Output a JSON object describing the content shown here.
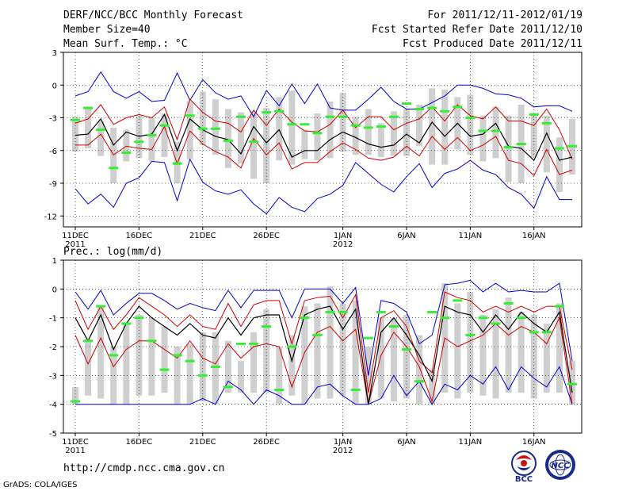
{
  "header": {
    "title": "DERF/NCC/BCC Monthly Forecast",
    "member_size": "Member Size=40",
    "variable1": "Mean Surf. Temp.: °C",
    "period": "For 2011/12/11-2012/01/19",
    "refer_date": "Fcst Started Refer Date 2011/12/10",
    "produced_date": "Fcst Produced Date 2011/12/11"
  },
  "panel2_title": "Prec.: log(mm/d)",
  "footer": {
    "url": "http://cmdp.ncc.cma.gov.cn",
    "grads": "GrADS: COLA/IGES"
  },
  "logos": {
    "bcc": "BCC",
    "ncc": "NCC"
  },
  "colors": {
    "ensemble_mean": "#000000",
    "spread": "#cc0000",
    "extreme": "#0000cc",
    "box": "#cfcfcf",
    "observed": "#33ee33"
  },
  "chart_data": [
    {
      "type": "line",
      "title": "Mean Surf. Temp.: °C",
      "x_tick_labels": [
        "11DEC",
        "16DEC",
        "21DEC",
        "26DEC",
        "1JAN",
        "6JAN",
        "11JAN",
        "16JAN"
      ],
      "x_tick_days": [
        1,
        6,
        11,
        16,
        22,
        27,
        32,
        37
      ],
      "year_labels": [
        {
          "label": "2011",
          "day": 1
        },
        {
          "label": "2012",
          "day": 22
        }
      ],
      "ylim": [
        -13,
        3
      ],
      "yticks": [
        3,
        0,
        -3,
        -6,
        -9,
        -12
      ],
      "days": 40,
      "series": [
        {
          "name": "max",
          "values": [
            -1,
            -0.6,
            1.2,
            -0.6,
            -1.2,
            -0.6,
            -1.5,
            -1.4,
            1.1,
            -1.4,
            0.5,
            -0.7,
            -1.3,
            -1.0,
            -2.9,
            -0.5,
            -1.9,
            0.1,
            -1.7,
            0.1,
            -2.1,
            -2.3,
            -2.3,
            -1.3,
            -0.2,
            -1.5,
            -2.2,
            -2.2,
            -1.6,
            -1,
            0,
            0,
            -0.3,
            -0.8,
            -0.9,
            -1.2,
            -2,
            -1.9,
            -1.9,
            -2.4
          ]
        },
        {
          "name": "upper",
          "values": [
            -3.5,
            -3.1,
            -1.8,
            -3.6,
            -3.0,
            -2.7,
            -3.0,
            -2.0,
            -5.0,
            -1.3,
            -2.5,
            -3.3,
            -3.5,
            -4.3,
            -2.3,
            -3.7,
            -2.2,
            -3.4,
            -4.2,
            -4.3,
            -3.6,
            -2.3,
            -3.9,
            -2.9,
            -2.9,
            -4.1,
            -3.5,
            -3.1,
            -2.0,
            -3.3,
            -1.8,
            -2.8,
            -3.1,
            -2.0,
            -3.3,
            -3.3,
            -3.7,
            -2.2,
            -4.1,
            -6.8
          ]
        },
        {
          "name": "mean",
          "values": [
            -4.6,
            -4.5,
            -3.1,
            -5.5,
            -4.3,
            -4.7,
            -4.5,
            -2.7,
            -6.0,
            -3.1,
            -4.1,
            -4.7,
            -5.0,
            -6.3,
            -3.8,
            -5.3,
            -4.1,
            -6.6,
            -6.0,
            -6.0,
            -5.0,
            -4.3,
            -4.8,
            -5.4,
            -5.7,
            -5.5,
            -4.5,
            -5.3,
            -3.4,
            -4.7,
            -3.5,
            -4.7,
            -4.5,
            -3.5,
            -5.6,
            -5.8,
            -6.9,
            -4.4,
            -6.9,
            -6.6
          ]
        },
        {
          "name": "lower",
          "values": [
            -5.5,
            -5.5,
            -4.5,
            -6.4,
            -5.6,
            -5.8,
            -5.9,
            -3.8,
            -7.2,
            -4.2,
            -5.4,
            -6.1,
            -6.6,
            -7.6,
            -4.9,
            -6.4,
            -5.3,
            -7.7,
            -7.1,
            -7.1,
            -6.1,
            -5.3,
            -5.9,
            -6.7,
            -6.9,
            -6.6,
            -5.6,
            -6.5,
            -4.7,
            -5.9,
            -4.8,
            -6.0,
            -5.5,
            -4.7,
            -6.9,
            -7.2,
            -8.3,
            -5.9,
            -8.2,
            -7.8
          ]
        },
        {
          "name": "min",
          "values": [
            -9.5,
            -10.9,
            -10.0,
            -11.2,
            -9.0,
            -8.5,
            -7.0,
            -7.1,
            -10.6,
            -6.8,
            -8.9,
            -9.7,
            -10.0,
            -9.6,
            -10.9,
            -11.8,
            -10.3,
            -11.2,
            -11.6,
            -10.4,
            -10.0,
            -9.2,
            -7.1,
            -8.1,
            -9.1,
            -9.8,
            -8.4,
            -7.2,
            -9.4,
            -8.1,
            -7.7,
            -6.9,
            -7.8,
            -8.2,
            -9.4,
            -10.0,
            -11.3,
            -8.4,
            -10.5,
            -10.5
          ]
        },
        {
          "name": "observed",
          "values": [
            -3.2,
            -2.1,
            -4.1,
            -7.6,
            -6.2,
            -5.2,
            -4.6,
            -3.7,
            -7.2,
            -2.8,
            -4.0,
            -4.0,
            -5.1,
            -2.9,
            -5.2,
            -2.5,
            -2.4,
            -3.6,
            -3.6,
            -4.4,
            -2.9,
            -2.9,
            -3.7,
            -3.9,
            -3.8,
            -2.9,
            -1.7,
            -2.2,
            -2.1,
            -2.4,
            -2.0,
            -3.0,
            -4.2,
            -4.2,
            -5.7,
            -5.4,
            -2.7,
            -3.5,
            -5.8,
            -5.6
          ]
        },
        {
          "name": "box_top",
          "values": [
            -2.9,
            -2.1,
            -3.3,
            -3.9,
            -4.1,
            -2.8,
            -3.0,
            -2.6,
            -5.2,
            -1.5,
            -0.6,
            -1.3,
            -2.2,
            -2.5,
            -2.4,
            -2.1,
            -1.1,
            -0.5,
            -4.1,
            -2.6,
            -1.5,
            -0.7,
            -2.9,
            -2.2,
            -3.5,
            -2.4,
            -2.2,
            -1.8,
            -0.3,
            -0.4,
            -1.1,
            -0.9,
            -2.8,
            -2.0,
            -2.8,
            -1.8,
            -2.8,
            -2.8,
            -4.8,
            -3.1
          ]
        },
        {
          "name": "box_bottom",
          "values": [
            -6.1,
            -5.8,
            -6.5,
            -9.0,
            -7.0,
            -6.7,
            -7.0,
            -6.6,
            -9.0,
            -6.8,
            -5.5,
            -6.4,
            -7.6,
            -7.2,
            -8.6,
            -9.0,
            -6.9,
            -7.3,
            -6.8,
            -6.9,
            -6.7,
            -6.1,
            -6.4,
            -6.4,
            -6.6,
            -6.5,
            -6.5,
            -5.6,
            -7.3,
            -7.3,
            -5.9,
            -6.4,
            -7.0,
            -6.7,
            -8.9,
            -9.0,
            -6.6,
            -8.0,
            -9.8,
            -8.2
          ]
        }
      ]
    },
    {
      "type": "line",
      "title": "Prec.: log(mm/d)",
      "x_tick_labels": [
        "11DEC",
        "16DEC",
        "21DEC",
        "26DEC",
        "1JAN",
        "6JAN",
        "11JAN",
        "16JAN"
      ],
      "x_tick_days": [
        1,
        6,
        11,
        16,
        22,
        27,
        32,
        37
      ],
      "year_labels": [
        {
          "label": "2011",
          "day": 1
        },
        {
          "label": "2012",
          "day": 22
        }
      ],
      "ylim": [
        -5,
        1
      ],
      "yticks": [
        1,
        0,
        -1,
        -2,
        -3,
        -4,
        -5
      ],
      "days": 40,
      "series": [
        {
          "name": "max",
          "values": [
            -0.1,
            -0.7,
            -0.05,
            -0.9,
            -0.5,
            -0.15,
            -0.15,
            -0.4,
            -0.7,
            -0.5,
            -0.65,
            -0.75,
            -0.05,
            -0.65,
            -0.05,
            -0.05,
            -0.05,
            -1.0,
            0.0,
            0.0,
            0.0,
            -0.5,
            0.05,
            -3.0,
            -0.4,
            -0.5,
            -0.8,
            -1.9,
            -1.6,
            0.15,
            0.2,
            0.3,
            -0.1,
            0.2,
            -0.1,
            -0.05,
            -0.1,
            -0.1,
            0.2,
            -2.5
          ]
        },
        {
          "name": "upper",
          "values": [
            -0.4,
            -1.4,
            -0.6,
            -1.4,
            -0.9,
            -0.3,
            -0.6,
            -0.9,
            -1.3,
            -0.9,
            -1.3,
            -1.4,
            -0.5,
            -1.3,
            -0.55,
            -0.4,
            -0.4,
            -1.9,
            -0.4,
            -0.3,
            -0.25,
            -1.0,
            -0.2,
            -3.6,
            -1.0,
            -0.75,
            -1.3,
            -2.5,
            -2.9,
            -0.1,
            -0.3,
            -0.4,
            -0.8,
            -0.6,
            -0.8,
            -0.6,
            -0.8,
            -0.6,
            -0.6,
            -2.8
          ]
        },
        {
          "name": "mean",
          "values": [
            -1.0,
            -1.8,
            -0.9,
            -2.1,
            -1.2,
            -0.6,
            -1.0,
            -1.3,
            -1.6,
            -1.2,
            -1.6,
            -1.7,
            -1.0,
            -1.6,
            -1.0,
            -0.9,
            -0.9,
            -2.5,
            -0.9,
            -0.7,
            -0.6,
            -1.4,
            -0.7,
            -4.0,
            -1.5,
            -1.0,
            -1.6,
            -2.3,
            -3.2,
            -0.6,
            -0.8,
            -0.9,
            -1.5,
            -0.9,
            -1.4,
            -0.8,
            -1.2,
            -1.5,
            -0.8,
            -3.6
          ]
        },
        {
          "name": "lower",
          "values": [
            -1.6,
            -2.6,
            -1.7,
            -2.7,
            -2.1,
            -1.8,
            -1.8,
            -2.1,
            -2.4,
            -1.8,
            -2.4,
            -2.6,
            -1.9,
            -2.4,
            -2.0,
            -1.9,
            -2.0,
            -3.4,
            -2.2,
            -1.5,
            -1.3,
            -1.8,
            -1.4,
            -4.0,
            -2.3,
            -1.5,
            -2.0,
            -2.7,
            -3.9,
            -1.7,
            -2.0,
            -1.8,
            -1.6,
            -1.2,
            -1.6,
            -1.3,
            -1.5,
            -1.9,
            -1.0,
            -4.0
          ]
        },
        {
          "name": "min",
          "values": [
            -4.0,
            -4.0,
            -4.0,
            -4.0,
            -4.0,
            -4.0,
            -4.0,
            -4.0,
            -4.0,
            -4.0,
            -3.8,
            -4.0,
            -3.2,
            -3.5,
            -4.0,
            -3.5,
            -3.7,
            -4.0,
            -4.0,
            -3.4,
            -3.3,
            -3.7,
            -4.0,
            -4.0,
            -3.8,
            -3.0,
            -3.7,
            -3.2,
            -4.0,
            -3.3,
            -3.5,
            -3.0,
            -3.3,
            -2.7,
            -3.5,
            -2.7,
            -3.1,
            -3.4,
            -2.7,
            -4.0
          ]
        },
        {
          "name": "observed",
          "values": [
            -3.9,
            -1.8,
            -0.6,
            -2.3,
            -1.2,
            -1.0,
            -1.8,
            -2.8,
            -2.3,
            -2.5,
            -3.0,
            -2.7,
            -3.4,
            -1.9,
            -1.9,
            -1.3,
            -3.5,
            -2.0,
            -1.0,
            -1.6,
            -0.8,
            -0.8,
            -3.5,
            -1.7,
            -0.8,
            -1.3,
            -2.1,
            -3.2,
            -0.8,
            -1.0,
            -0.4,
            -1.6,
            -1.0,
            -1.2,
            -0.5,
            -1.0,
            -1.5,
            -1.5,
            -0.6,
            -3.3
          ]
        },
        {
          "name": "box_top",
          "values": [
            -3.4,
            -1.8,
            -0.6,
            -2.0,
            -1.2,
            -0.9,
            -1.0,
            -1.3,
            -2.0,
            -1.9,
            -1.5,
            -1.5,
            -1.8,
            -2.5,
            -1.5,
            -0.7,
            -2.0,
            -1.6,
            -0.6,
            -0.5,
            0.1,
            -0.5,
            -0.4,
            -2.0,
            -1.0,
            -1.0,
            -0.9,
            -1.6,
            -2.8,
            0.2,
            -0.5,
            -0.1,
            -0.9,
            -0.7,
            -0.3,
            -0.8,
            -0.9,
            -1.2,
            -0.5,
            -2.5
          ]
        },
        {
          "name": "box_bottom",
          "values": [
            -4.0,
            -3.7,
            -3.8,
            -4.0,
            -4.0,
            -3.7,
            -3.7,
            -3.6,
            -4.0,
            -4.0,
            -3.9,
            -4.0,
            -3.6,
            -3.6,
            -3.6,
            -3.6,
            -4.0,
            -3.7,
            -4.0,
            -3.8,
            -3.8,
            -3.7,
            -4.0,
            -4.0,
            -3.8,
            -3.9,
            -3.8,
            -4.0,
            -4.0,
            -3.6,
            -3.8,
            -3.6,
            -3.7,
            -3.8,
            -3.6,
            -3.6,
            -3.8,
            -3.6,
            -3.6,
            -4.0
          ]
        }
      ]
    }
  ]
}
